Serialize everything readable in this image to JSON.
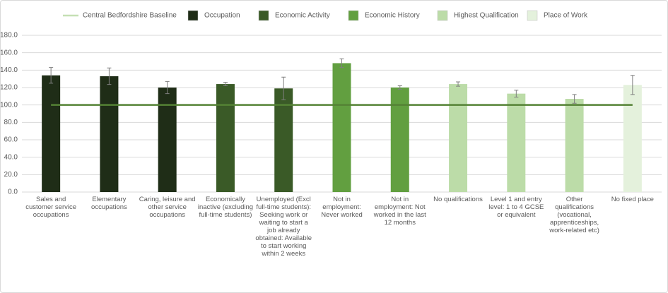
{
  "chart_data": {
    "type": "bar",
    "categories": [
      "Sales and customer service occupations",
      "Elementary occupations",
      "Caring, leisure and other service occupations",
      "Economically inactive (excluding full-time students)",
      "Unemployed (Excl full-time students): Seeking work or waiting to start a job already obtained: Available to start working within 2 weeks",
      "Not in employment: Never worked",
      "Not in employment: Not worked in the last 12 months",
      "No qualifications",
      "Level 1 and entry level: 1 to 4 GCSE or equivalent",
      "Other qualifications (vocational, apprenticeships, work-related etc)",
      "No fixed place"
    ],
    "series": [
      {
        "name": "Occupation",
        "color": "#1f2d17",
        "values": [
          134,
          133,
          120,
          null,
          null,
          null,
          null,
          null,
          null,
          null,
          null
        ],
        "errors": [
          9,
          9.5,
          7,
          null,
          null,
          null,
          null,
          null,
          null,
          null,
          null
        ]
      },
      {
        "name": "Economic Activity",
        "color": "#3a5a27",
        "values": [
          null,
          null,
          null,
          124,
          119,
          null,
          null,
          null,
          null,
          null,
          null
        ],
        "errors": [
          null,
          null,
          null,
          2,
          13,
          null,
          null,
          null,
          null,
          null,
          null
        ]
      },
      {
        "name": "Economic History",
        "color": "#629f40",
        "values": [
          null,
          null,
          null,
          null,
          null,
          148,
          120,
          null,
          null,
          null,
          null
        ],
        "errors": [
          null,
          null,
          null,
          null,
          null,
          5,
          2,
          null,
          null,
          null,
          null
        ]
      },
      {
        "name": "Highest Qualification",
        "color": "#bcdca8",
        "values": [
          null,
          null,
          null,
          null,
          null,
          null,
          null,
          124,
          113,
          107,
          null
        ],
        "errors": [
          null,
          null,
          null,
          null,
          null,
          null,
          null,
          2.5,
          4,
          5,
          null
        ]
      },
      {
        "name": "Place of Work",
        "color": "#e4f1dc",
        "values": [
          null,
          null,
          null,
          null,
          null,
          null,
          null,
          null,
          null,
          null,
          123
        ],
        "errors": [
          null,
          null,
          null,
          null,
          null,
          null,
          null,
          null,
          null,
          null,
          11
        ]
      }
    ],
    "baseline": {
      "name": "Central Bedfordshire Baseline",
      "value": 100,
      "color": "#548235",
      "legend_color": "#c5e0b4"
    },
    "ylim": [
      0,
      180
    ],
    "yticks": [
      {
        "value": 0,
        "label": "0.0"
      },
      {
        "value": 20,
        "label": "20.0"
      },
      {
        "value": 40,
        "label": "40.0"
      },
      {
        "value": 60,
        "label": "60.0"
      },
      {
        "value": 80,
        "label": "80.0"
      },
      {
        "value": 100,
        "label": "100.0"
      },
      {
        "value": 120,
        "label": "120.0"
      },
      {
        "value": 140,
        "label": "140.0"
      },
      {
        "value": 160,
        "label": "160.0"
      },
      {
        "value": 180,
        "label": "180.0"
      }
    ],
    "grid": true,
    "legend": "top"
  }
}
